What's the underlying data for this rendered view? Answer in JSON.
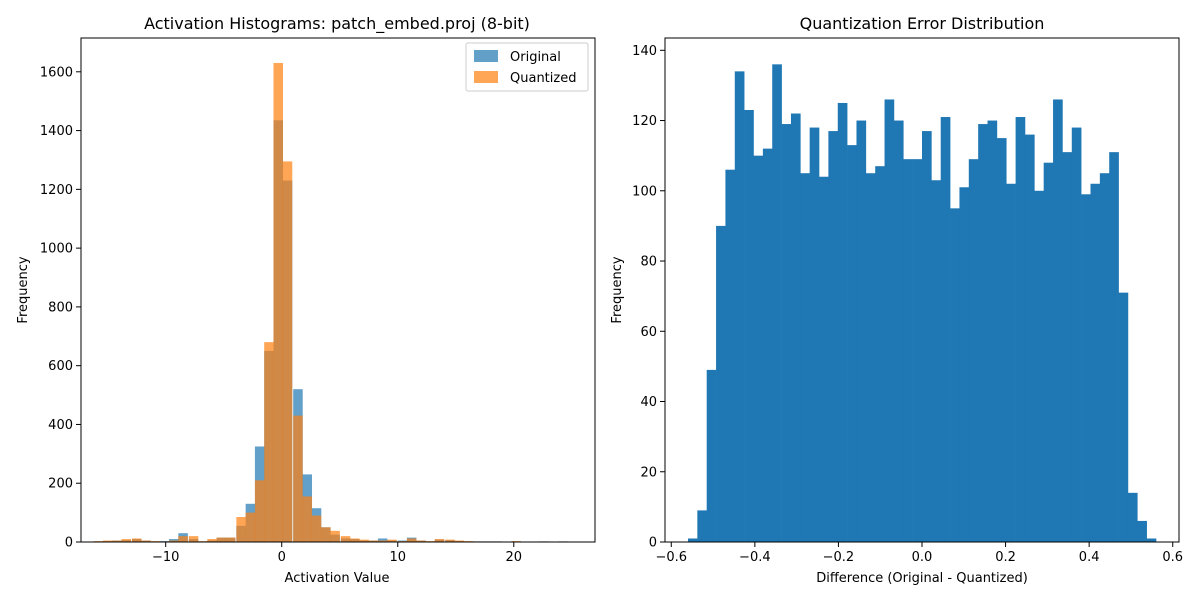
{
  "chart_data": [
    {
      "type": "bar",
      "title": "Activation Histograms: patch_embed.proj (8-bit)",
      "xlabel": "Activation Value",
      "ylabel": "Frequency",
      "xlim": [
        -17.3,
        27.0
      ],
      "ylim": [
        0,
        1715
      ],
      "xticks": [
        -10,
        0,
        10,
        20
      ],
      "yticks": [
        0,
        200,
        400,
        600,
        800,
        1000,
        1200,
        1400,
        1600
      ],
      "legend_position": "top-right",
      "bin_width": 0.82,
      "series": [
        {
          "name": "Original",
          "color": "#1f77b4",
          "opacity": 0.7,
          "bins": [
            [
              -15.8,
              2
            ],
            [
              -15.0,
              3
            ],
            [
              -14.2,
              5
            ],
            [
              -13.4,
              6
            ],
            [
              -12.5,
              10
            ],
            [
              -11.7,
              5
            ],
            [
              -10.9,
              2
            ],
            [
              -10.1,
              3
            ],
            [
              -9.3,
              10
            ],
            [
              -8.5,
              30
            ],
            [
              -7.6,
              10
            ],
            [
              -6.8,
              2
            ],
            [
              -6.0,
              5
            ],
            [
              -5.2,
              15
            ],
            [
              -4.4,
              15
            ],
            [
              -3.5,
              55
            ],
            [
              -2.7,
              130
            ],
            [
              -1.9,
              325
            ],
            [
              -1.1,
              650
            ],
            [
              -0.3,
              1435
            ],
            [
              0.5,
              1230
            ],
            [
              1.4,
              520
            ],
            [
              2.2,
              230
            ],
            [
              3.0,
              115
            ],
            [
              3.8,
              50
            ],
            [
              4.6,
              25
            ],
            [
              5.5,
              12
            ],
            [
              6.3,
              10
            ],
            [
              7.1,
              5
            ],
            [
              7.9,
              5
            ],
            [
              8.7,
              12
            ],
            [
              9.5,
              5
            ],
            [
              10.4,
              5
            ],
            [
              11.2,
              15
            ],
            [
              12.0,
              5
            ],
            [
              12.8,
              2
            ],
            [
              13.6,
              8
            ],
            [
              14.5,
              6
            ],
            [
              15.3,
              3
            ],
            [
              16.1,
              2
            ],
            [
              16.9,
              2
            ],
            [
              17.7,
              2
            ],
            [
              18.5,
              2
            ],
            [
              20.2,
              2
            ],
            [
              22.6,
              2
            ],
            [
              24.3,
              2
            ]
          ]
        },
        {
          "name": "Quantized",
          "color": "#ff7f0e",
          "opacity": 0.7,
          "bins": [
            [
              -15.8,
              3
            ],
            [
              -15.0,
              5
            ],
            [
              -14.2,
              5
            ],
            [
              -13.4,
              10
            ],
            [
              -12.5,
              12
            ],
            [
              -11.7,
              5
            ],
            [
              -10.9,
              3
            ],
            [
              -10.1,
              2
            ],
            [
              -9.3,
              5
            ],
            [
              -8.5,
              20
            ],
            [
              -7.6,
              20
            ],
            [
              -6.8,
              3
            ],
            [
              -6.0,
              10
            ],
            [
              -5.2,
              15
            ],
            [
              -4.4,
              15
            ],
            [
              -3.5,
              85
            ],
            [
              -2.7,
              100
            ],
            [
              -1.9,
              210
            ],
            [
              -1.1,
              680
            ],
            [
              -0.3,
              1630
            ],
            [
              0.5,
              1295
            ],
            [
              1.4,
              430
            ],
            [
              2.2,
              155
            ],
            [
              3.0,
              90
            ],
            [
              3.8,
              50
            ],
            [
              4.6,
              38
            ],
            [
              5.5,
              20
            ],
            [
              6.3,
              12
            ],
            [
              7.1,
              8
            ],
            [
              7.9,
              5
            ],
            [
              8.7,
              5
            ],
            [
              9.5,
              8
            ],
            [
              10.4,
              3
            ],
            [
              11.2,
              12
            ],
            [
              12.0,
              5
            ],
            [
              12.8,
              3
            ],
            [
              13.6,
              10
            ],
            [
              14.5,
              8
            ],
            [
              15.3,
              5
            ],
            [
              16.1,
              3
            ],
            [
              16.9,
              2
            ],
            [
              17.7,
              2
            ],
            [
              18.5,
              2
            ],
            [
              20.2,
              3
            ],
            [
              22.6,
              2
            ],
            [
              24.3,
              2
            ]
          ]
        }
      ]
    },
    {
      "type": "bar",
      "title": "Quantization Error Distribution",
      "xlabel": "Difference (Original - Quantized)",
      "ylabel": "Frequency",
      "xlim": [
        -0.615,
        0.615
      ],
      "ylim": [
        0,
        143.5
      ],
      "xticks": [
        -0.6,
        -0.4,
        -0.2,
        0.0,
        0.2,
        0.4,
        0.6
      ],
      "xtick_labels": [
        "−0.6",
        "−0.4",
        "−0.2",
        "0.0",
        "0.2",
        "0.4",
        "0.6"
      ],
      "yticks": [
        0,
        20,
        40,
        60,
        80,
        100,
        120,
        140
      ],
      "series": [
        {
          "name": "",
          "color": "#1f77b4",
          "opacity": 1,
          "bin_start": -0.56,
          "bin_width": 0.0224,
          "values": [
            1,
            9,
            49,
            90,
            106,
            134,
            123,
            110,
            112,
            136,
            119,
            122,
            105,
            118,
            104,
            117,
            125,
            113,
            120,
            105,
            107,
            126,
            120,
            109,
            109,
            117,
            103,
            121,
            95,
            101,
            109,
            119,
            120,
            115,
            102,
            121,
            116,
            100,
            108,
            126,
            111,
            118,
            99,
            102,
            105,
            111,
            71,
            14,
            6,
            1
          ]
        }
      ]
    }
  ]
}
